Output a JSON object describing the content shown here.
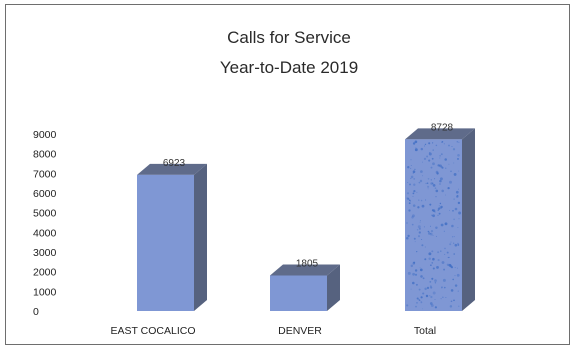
{
  "chart_data": {
    "type": "bar",
    "title": [
      "Calls for Service",
      "Year-to-Date 2019"
    ],
    "categories": [
      "EAST COCALICO",
      "DENVER",
      "Total"
    ],
    "values": [
      6923,
      1805,
      8728
    ],
    "data_labels": [
      "6923",
      "1805",
      "8728"
    ],
    "y_ticks": [
      "0",
      "1000",
      "2000",
      "3000",
      "4000",
      "5000",
      "6000",
      "7000",
      "8000",
      "9000"
    ],
    "ylim": [
      0,
      9000
    ],
    "grid": false,
    "style": "3d-column",
    "colors": {
      "bar_front": "#7f97d4",
      "bar_side": "#56627f",
      "bar_top": "#5f6b8a",
      "total_speckle": "#3f6ec4"
    }
  }
}
